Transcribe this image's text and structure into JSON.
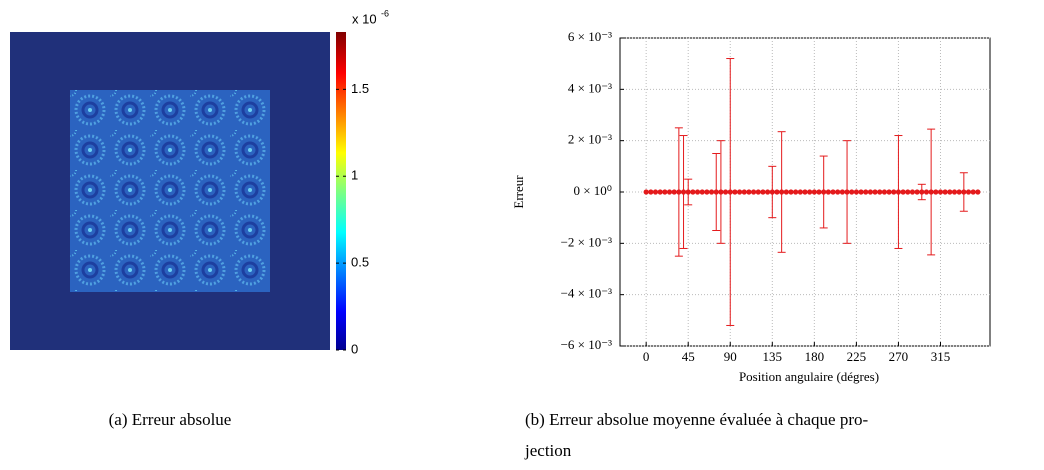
{
  "chart_data": [
    {
      "type": "heatmap",
      "caption": [
        "(a) Erreur absolue"
      ],
      "colorbar": {
        "ylim": [
          0,
          1.83
        ],
        "yticks": [
          0,
          0.5,
          1,
          1.5
        ],
        "scale_base": "x 10",
        "scale_exponent": "-6"
      }
    },
    {
      "type": "scatter",
      "caption": [
        "(b) Erreur absolue moyenne évaluée à chaque pro-",
        "jection"
      ],
      "xlabel": "Position angulaire (dégres)",
      "ylabel": "Erreur",
      "color": "#e41a1c",
      "grid": true,
      "xlim": [
        -28,
        368
      ],
      "xticks": [
        0,
        45,
        90,
        135,
        180,
        225,
        270,
        315
      ],
      "ylim": [
        -0.006,
        0.006
      ],
      "yticks": [
        {
          "value": 0.006,
          "label": "6 × 10⁻³"
        },
        {
          "value": 0.004,
          "label": "4 × 10⁻³"
        },
        {
          "value": 0.002,
          "label": "2 × 10⁻³"
        },
        {
          "value": 0,
          "label": "0 × 10⁰"
        },
        {
          "value": -0.002,
          "label": "−2 × 10⁻³"
        },
        {
          "value": -0.004,
          "label": "−4 × 10⁻³"
        },
        {
          "value": -0.006,
          "label": "−6 × 10⁻³"
        }
      ],
      "x": [
        0,
        5,
        10,
        15,
        20,
        25,
        30,
        35,
        40,
        45,
        50,
        55,
        60,
        65,
        70,
        75,
        80,
        85,
        90,
        95,
        100,
        105,
        110,
        115,
        120,
        125,
        130,
        135,
        140,
        145,
        150,
        155,
        160,
        165,
        170,
        175,
        180,
        185,
        190,
        195,
        200,
        205,
        210,
        215,
        220,
        225,
        230,
        235,
        240,
        245,
        250,
        255,
        260,
        265,
        270,
        275,
        280,
        285,
        290,
        295,
        300,
        305,
        310,
        315,
        320,
        325,
        330,
        335,
        340,
        345,
        350,
        355
      ],
      "values": [
        0,
        0,
        0,
        0,
        0,
        0,
        0,
        0,
        0,
        0,
        0,
        0,
        0,
        0,
        0,
        0,
        0,
        0,
        0,
        0,
        0,
        0,
        0,
        0,
        0,
        0,
        0,
        0,
        0,
        0,
        0,
        0,
        0,
        0,
        0,
        0,
        0,
        0,
        0,
        0,
        0,
        0,
        0,
        0,
        0,
        0,
        0,
        0,
        0,
        0,
        0,
        0,
        0,
        0,
        0,
        0,
        0,
        0,
        0,
        0,
        0,
        0,
        0,
        0,
        0,
        0,
        0,
        0,
        0,
        0,
        0,
        0
      ],
      "errors": [
        null,
        null,
        null,
        null,
        null,
        null,
        null,
        0.0025,
        0.0022,
        0.0005,
        null,
        null,
        null,
        null,
        null,
        0.0015,
        0.002,
        null,
        0.0052,
        null,
        null,
        null,
        null,
        null,
        null,
        null,
        null,
        0.001,
        null,
        0.00235,
        null,
        null,
        null,
        null,
        null,
        null,
        null,
        null,
        0.0014,
        null,
        null,
        null,
        null,
        0.002,
        null,
        null,
        null,
        null,
        null,
        null,
        null,
        null,
        null,
        null,
        0.0022,
        null,
        null,
        null,
        null,
        0.0003,
        null,
        0.00245,
        null,
        null,
        null,
        null,
        null,
        null,
        0.00075,
        null,
        null,
        null
      ]
    }
  ]
}
